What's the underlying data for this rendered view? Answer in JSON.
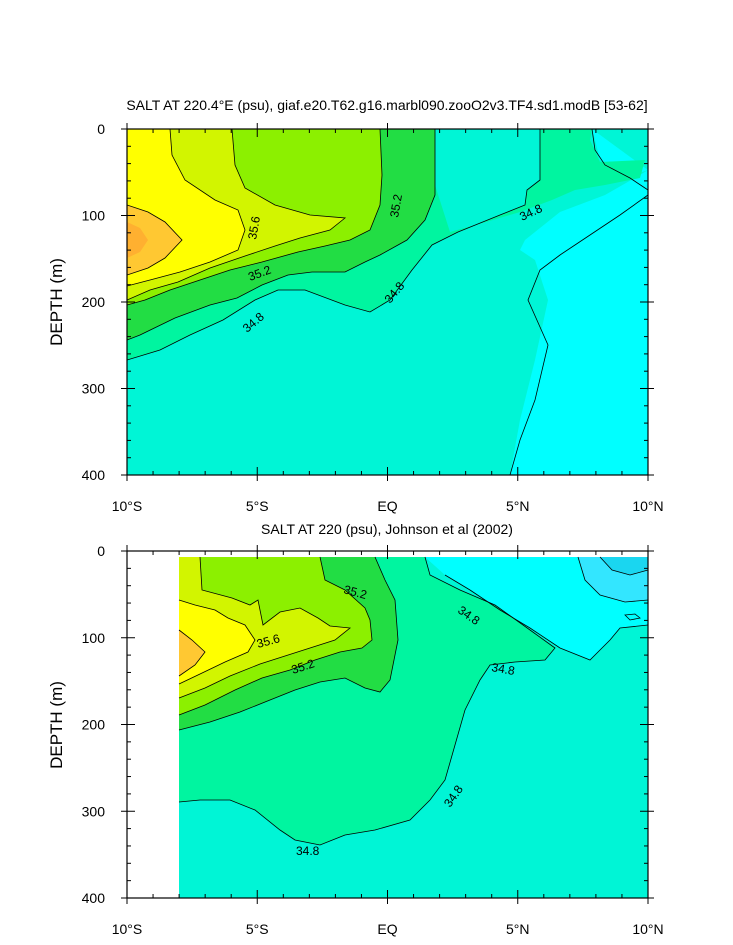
{
  "chart_data": [
    {
      "type": "contour",
      "title": "SALT AT 220.4°E (psu), giaf.e20.T62.g16.marbl090.zooO2v3.TF4.sd1.modB [53-62]",
      "ylabel": "DEPTH (m)",
      "xlabel": "",
      "x_range": [
        -10,
        10
      ],
      "y_range": [
        0,
        400
      ],
      "y_reversed": true,
      "x_tick_labels": [
        "10°S",
        "5°S",
        "EQ",
        "5°N",
        "10°N"
      ],
      "y_tick_labels": [
        "0",
        "100",
        "200",
        "300",
        "400"
      ],
      "contour_labels": [
        "35.6",
        "35.2",
        "35.2",
        "34.8",
        "34.8",
        "34.8"
      ],
      "colors": {
        "below_34_6": "#00ffff",
        "34_6_34_8": "#00f5d6",
        "34_8_35_0": "#00f5a0",
        "35_0_35_2": "#22dd44",
        "35_2_35_4": "#8cf000",
        "35_4_35_6": "#d2f500",
        "35_6_35_8": "#ffff00",
        "above_35_8": "#ffc832"
      }
    },
    {
      "type": "contour",
      "title": "SALT AT 220 (psu), Johnson et al (2002)",
      "ylabel": "DEPTH (m)",
      "xlabel": "",
      "x_range": [
        -10,
        10
      ],
      "y_range": [
        0,
        400
      ],
      "y_reversed": true,
      "x_tick_labels": [
        "10°S",
        "5°S",
        "EQ",
        "5°N",
        "10°N"
      ],
      "y_tick_labels": [
        "0",
        "100",
        "200",
        "300",
        "400"
      ],
      "contour_labels": [
        "35.2",
        "35.6",
        "35.2",
        "34.8",
        "34.8",
        "34.8",
        "34.8"
      ]
    }
  ]
}
